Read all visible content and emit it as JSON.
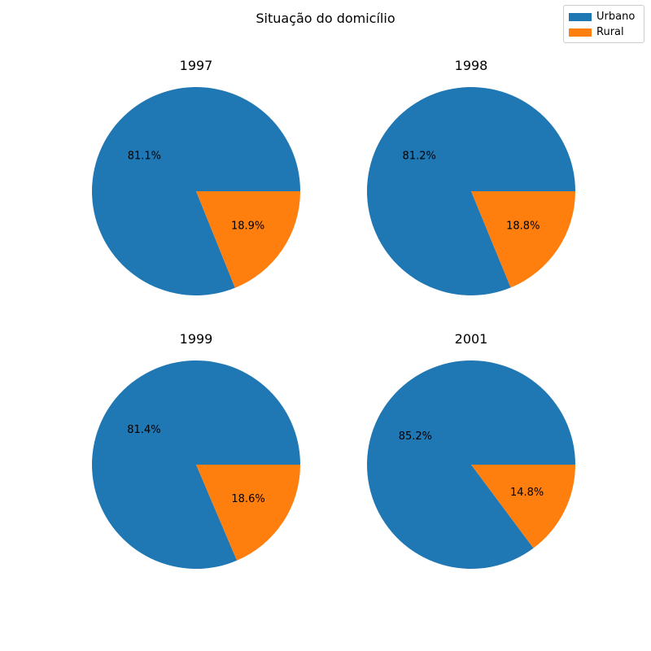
{
  "chart_data": {
    "type": "pie",
    "title": "Situação do domicílio",
    "legend": {
      "placement": "top-right",
      "entries": [
        {
          "label": "Urbano",
          "color": "#1f77b4"
        },
        {
          "label": "Rural",
          "color": "#ff7f0e"
        }
      ]
    },
    "charts": [
      {
        "title": "1997",
        "categories": [
          "Urbano",
          "Rural"
        ],
        "values": [
          81.1,
          18.9
        ],
        "labels": [
          "81.1%",
          "18.9%"
        ]
      },
      {
        "title": "1998",
        "categories": [
          "Urbano",
          "Rural"
        ],
        "values": [
          81.2,
          18.8
        ],
        "labels": [
          "81.2%",
          "18.8%"
        ]
      },
      {
        "title": "1999",
        "categories": [
          "Urbano",
          "Rural"
        ],
        "values": [
          81.4,
          18.6
        ],
        "labels": [
          "81.4%",
          "18.6%"
        ]
      },
      {
        "title": "2001",
        "categories": [
          "Urbano",
          "Rural"
        ],
        "values": [
          85.2,
          14.8
        ],
        "labels": [
          "85.2%",
          "14.8%"
        ]
      }
    ]
  }
}
